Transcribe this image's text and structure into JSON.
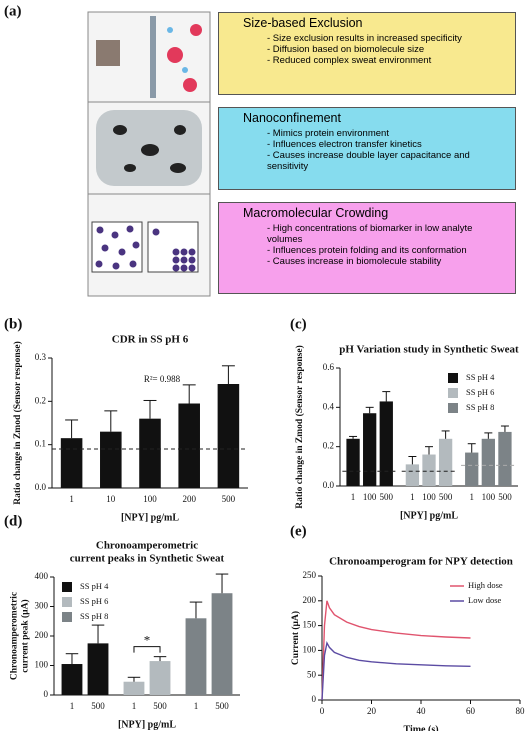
{
  "panel_labels": [
    "(a)",
    "(b)",
    "(c)",
    "(d)",
    "(e)"
  ],
  "panel_a": {
    "boxes": [
      {
        "title": "Size-based Exclusion",
        "bullets": [
          "- Size exclusion results in increased specificity",
          "- Diffusion based on biomolecule size",
          "- Reduced complex sweat environment"
        ]
      },
      {
        "title": "Nanoconfinement",
        "bullets": [
          "- Mimics protein environment",
          "- Influences electron transfer kinetics",
          "- Causes increase double layer capacitance and sensitivity"
        ]
      },
      {
        "title": "Macromolecular Crowding",
        "bullets": [
          "- High concentrations of biomarker in low analyte volumes",
          "- Influences protein folding and its conformation",
          "- Causes increase in biomolecule stability"
        ]
      }
    ]
  },
  "chart_data": [
    {
      "type": "bar",
      "title": [
        "CDR in SS pH 6"
      ],
      "y_label": [
        "Ratio change in Zmod (Sensor response)"
      ],
      "x_label": "[NPY] pg/mL",
      "categories": [
        "1",
        "10",
        "100",
        "200",
        "500"
      ],
      "values": [
        0.115,
        0.13,
        0.16,
        0.195,
        0.24
      ],
      "errors": [
        0.042,
        0.048,
        0.042,
        0.043,
        0.042
      ],
      "color": "#111111",
      "reference_line": 0.09,
      "annotation": "R²= 0.988",
      "ylim": [
        0,
        0.3
      ],
      "yticks": [
        {
          "value": 0,
          "label": "0.0"
        },
        {
          "value": 0.1,
          "label": "0.1"
        },
        {
          "value": 0.2,
          "label": "0.2"
        },
        {
          "value": 0.3,
          "label": "0.3"
        }
      ]
    },
    {
      "type": "bar",
      "title": [
        "pH Variation study in Synthetic Sweat"
      ],
      "y_label": [
        "Ratio change in Zmod (Sensor response)"
      ],
      "x_label": "[NPY] pg/mL",
      "categories": [
        "1",
        "100",
        "500"
      ],
      "legend": "upper right",
      "series": [
        {
          "name": "SS pH 4",
          "color": "#111111",
          "values": [
            0.24,
            0.37,
            0.43
          ],
          "errors": [
            0.012,
            0.03,
            0.05
          ],
          "reference": 0.075
        },
        {
          "name": "SS pH 6",
          "color": "#b3babe",
          "values": [
            0.11,
            0.16,
            0.24
          ],
          "errors": [
            0.04,
            0.04,
            0.04
          ],
          "reference": 0.075
        },
        {
          "name": "SS pH 8",
          "color": "#7c8387",
          "values": [
            0.17,
            0.24,
            0.275
          ],
          "errors": [
            0.045,
            0.03,
            0.03
          ],
          "reference": 0.105
        }
      ],
      "ylim": [
        0,
        0.6
      ],
      "yticks": [
        {
          "value": 0,
          "label": "0.0"
        },
        {
          "value": 0.2,
          "label": "0.2"
        },
        {
          "value": 0.4,
          "label": "0.4"
        },
        {
          "value": 0.6,
          "label": "0.6"
        }
      ]
    },
    {
      "type": "bar",
      "title": [
        "Chronoamperometric",
        "current peaks in Synthetic Sweat"
      ],
      "y_label": [
        "Chronoamperometric",
        "current peak (µA)"
      ],
      "x_label": "[NPY] pg/mL",
      "categories": [
        "1",
        "500"
      ],
      "legend": "upper left",
      "annotation": "*",
      "series": [
        {
          "name": "SS pH 4",
          "color": "#111111",
          "values": [
            105,
            175
          ],
          "errors": [
            35,
            62
          ]
        },
        {
          "name": "SS pH 6",
          "color": "#b3babe",
          "values": [
            45,
            115
          ],
          "errors": [
            15,
            15
          ]
        },
        {
          "name": "SS pH 8",
          "color": "#7c8387",
          "values": [
            260,
            345
          ],
          "errors": [
            55,
            65
          ]
        }
      ],
      "ylim": [
        0,
        400
      ],
      "yticks": [
        0,
        100,
        200,
        300,
        400
      ]
    },
    {
      "type": "line",
      "title": [
        "Chronoamperogram for NPY detection"
      ],
      "y_label": [
        "Current (µA)"
      ],
      "x_label": "Time (s)",
      "legend": "upper right",
      "x": [
        0,
        1,
        2,
        3,
        5,
        10,
        15,
        20,
        30,
        40,
        50,
        60
      ],
      "series": [
        {
          "name": "High dose",
          "color": "#e0546e",
          "values": [
            0,
            150,
            200,
            186,
            172,
            157,
            148,
            142,
            135,
            130,
            127,
            125
          ]
        },
        {
          "name": "Low dose",
          "color": "#5b4ba3",
          "values": [
            0,
            90,
            115,
            106,
            96,
            86,
            80,
            77,
            73,
            71,
            69,
            68
          ]
        }
      ],
      "xlim": [
        0,
        80
      ],
      "xticks": [
        0,
        20,
        40,
        60,
        80
      ],
      "ylim": [
        0,
        250
      ],
      "yticks": [
        0,
        50,
        100,
        150,
        200,
        250
      ]
    }
  ]
}
